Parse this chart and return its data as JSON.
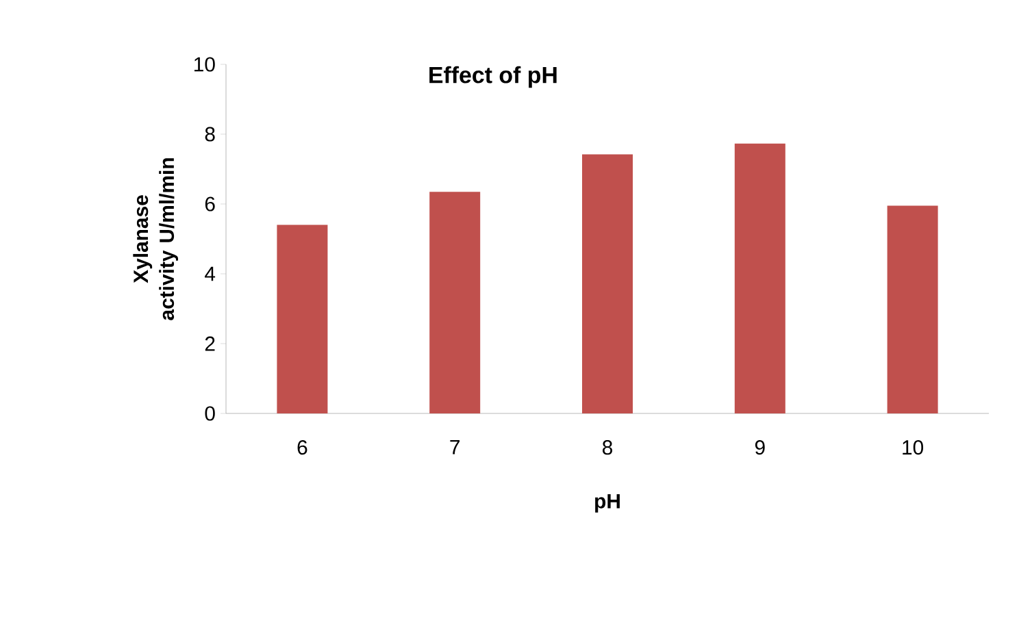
{
  "chart_data": {
    "type": "bar",
    "title": "Effect of pH",
    "xlabel": "pH",
    "ylabel": "Xylanase activity U/ml/min",
    "categories": [
      "6",
      "7",
      "8",
      "9",
      "10"
    ],
    "values": [
      5.4,
      6.35,
      7.42,
      7.73,
      5.95
    ],
    "color": "#c0504d",
    "ylim": [
      0,
      10
    ],
    "yticks": [
      0,
      2,
      4,
      6,
      8,
      10
    ],
    "grid": false
  }
}
